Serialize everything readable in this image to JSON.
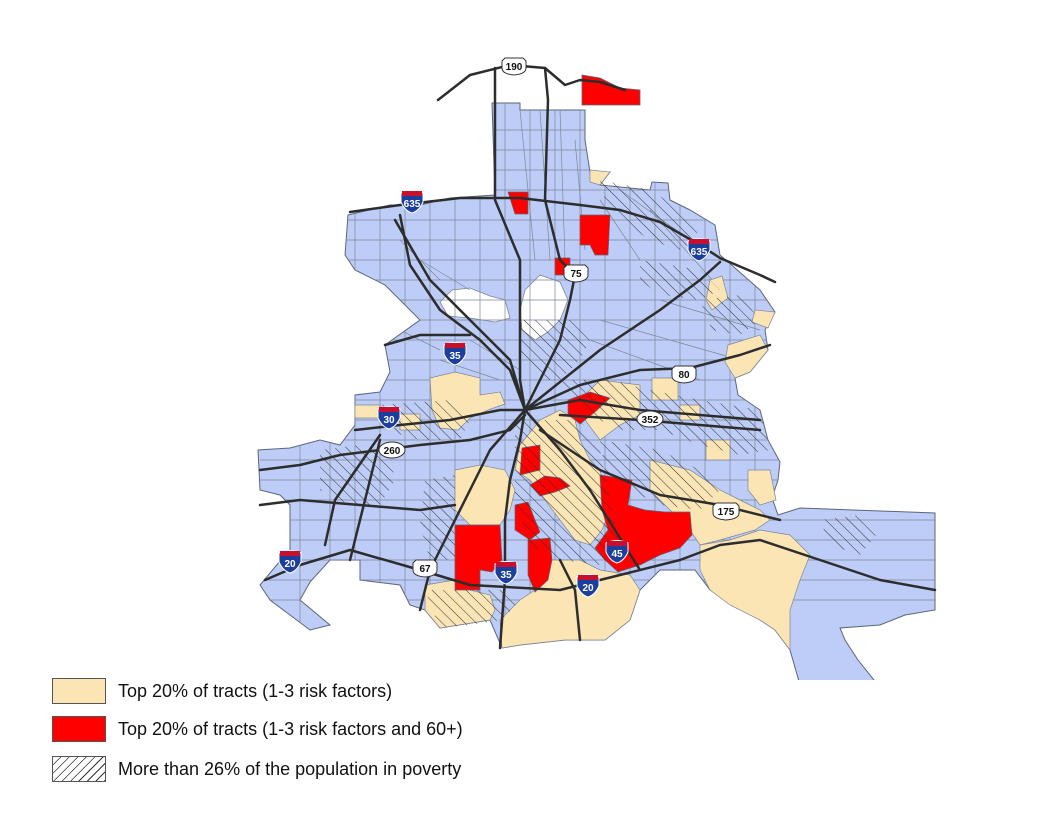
{
  "colors": {
    "base": "#bdcdf7",
    "tract_border": "#7d8799",
    "top20": "#fbe5b5",
    "top20_60plus": "#ff0000",
    "highway": "#2d2d2d",
    "interstate_blue": "#1c3f9e",
    "interstate_red": "#c8102e"
  },
  "highways": {
    "i635_west": "635",
    "i635_east": "635",
    "i35_north": "35",
    "i35_south": "35",
    "i30": "30",
    "i20_west": "20",
    "i20_south": "20",
    "i45": "45",
    "us190": "190",
    "us75": "75",
    "us80": "80",
    "us175": "175",
    "us67": "67",
    "sh352": "352",
    "sh260": "260"
  },
  "legend": [
    {
      "label": "Top 20% of tracts (1-3 risk factors)",
      "fill": "#fbe5b5",
      "pattern": false
    },
    {
      "label": "Top 20% of tracts (1-3 risk factors and 60+)",
      "fill": "#ff0000",
      "pattern": false
    },
    {
      "label": "More than 26% of the population in poverty",
      "fill": "#ffffff",
      "pattern": true
    }
  ]
}
